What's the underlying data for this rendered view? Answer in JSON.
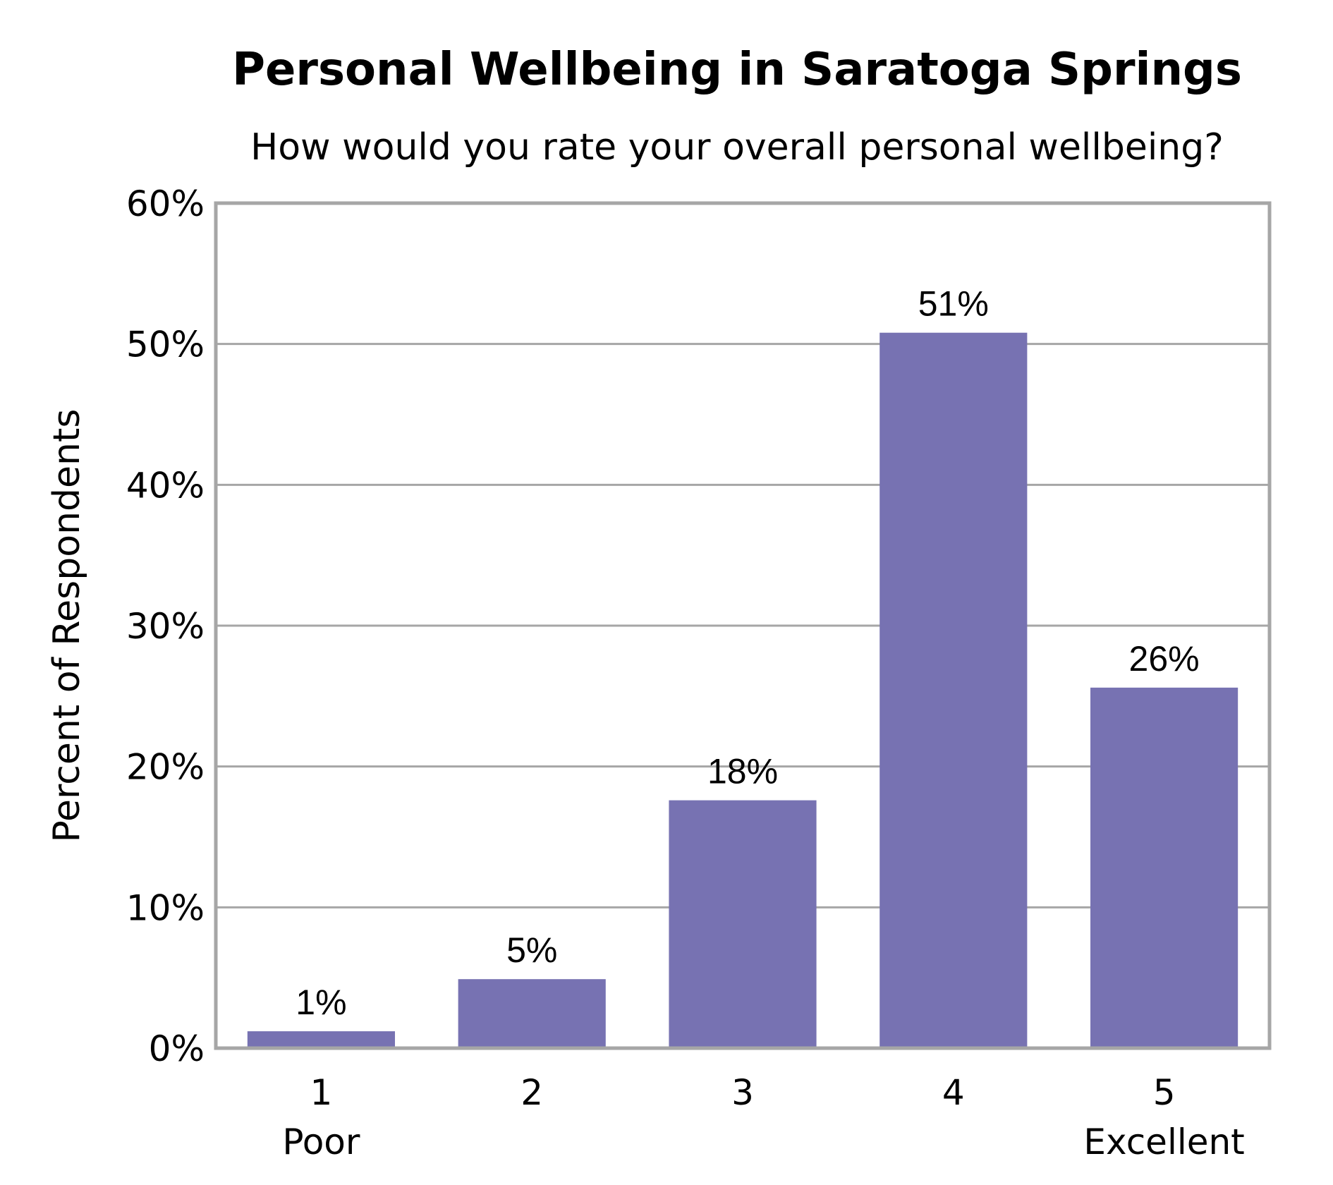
{
  "chart_data": {
    "type": "bar",
    "title": "Personal Wellbeing in Saratoga Springs",
    "subtitle": "How would you rate your overall personal wellbeing?",
    "ylabel": "Percent of Respondents",
    "xlabel": "",
    "categories": [
      "1",
      "2",
      "3",
      "4",
      "5"
    ],
    "category_sublabels": [
      "Poor",
      "",
      "",
      "",
      "Excellent"
    ],
    "values": [
      1.2,
      4.9,
      17.6,
      50.8,
      25.6
    ],
    "data_labels": [
      "1%",
      "5%",
      "18%",
      "51%",
      "26%"
    ],
    "ylim": [
      0,
      60
    ],
    "yticks": [
      0,
      10,
      20,
      30,
      40,
      50,
      60
    ],
    "ytick_labels": [
      "0%",
      "10%",
      "20%",
      "30%",
      "40%",
      "50%",
      "60%"
    ],
    "grid": true,
    "colors": {
      "bar": "#7772b2",
      "grid": "#a6a6a6"
    }
  }
}
